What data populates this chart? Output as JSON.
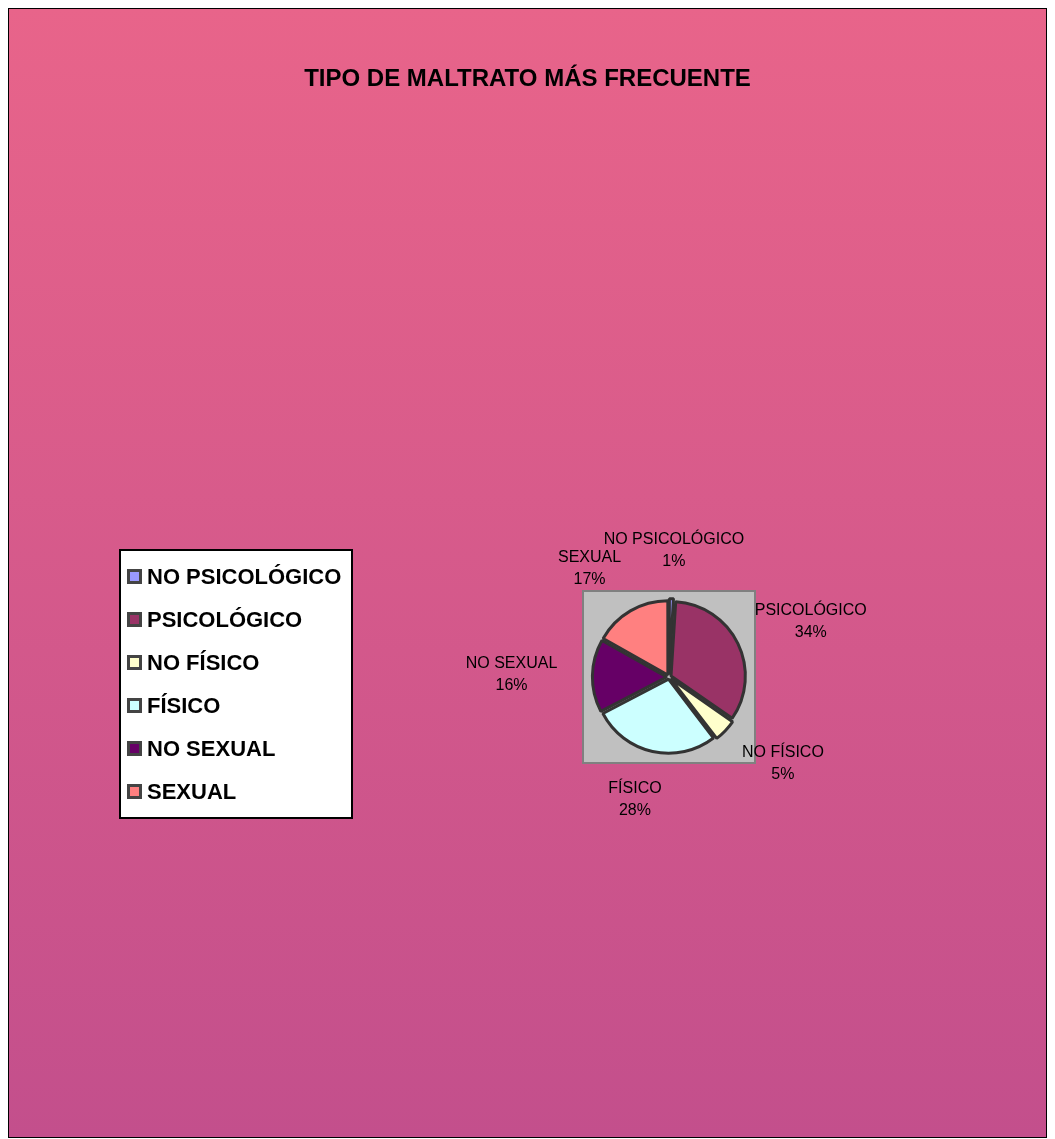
{
  "chart_data": {
    "type": "pie",
    "title": "TIPO DE MALTRATO MÁS FRECUENTE",
    "categories": [
      "NO PSICOLÓGICO",
      "PSICOLÓGICO",
      "NO FÍSICO",
      "FÍSICO",
      "NO SEXUAL",
      "SEXUAL"
    ],
    "values": [
      1,
      34,
      5,
      28,
      16,
      17
    ],
    "colors": [
      "#9999ff",
      "#993366",
      "#ffffcc",
      "#ccffff",
      "#660066",
      "#ff8080"
    ],
    "value_labels": [
      "1%",
      "34%",
      "5%",
      "28%",
      "16%",
      "17%"
    ],
    "legend": "left"
  }
}
